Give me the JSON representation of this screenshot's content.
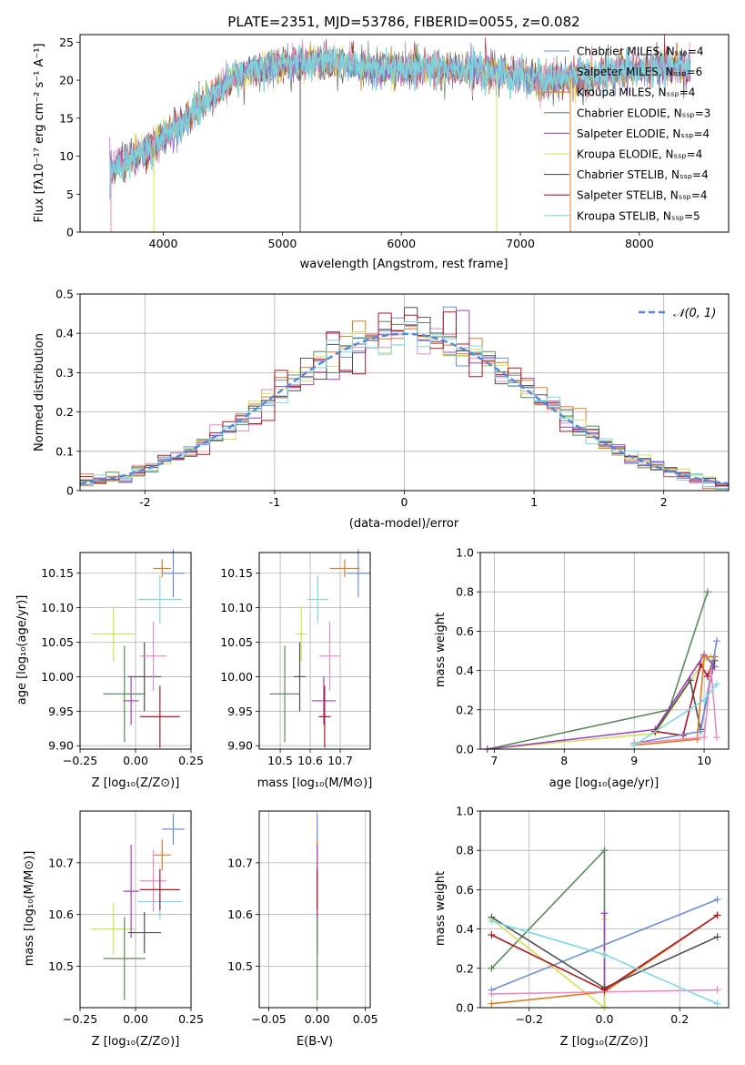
{
  "colors": {
    "chabrier_miles": "#6a8fd8",
    "salpeter_miles": "#e78ac3",
    "kroupa_miles": "#e07b24",
    "chabrier_elodie": "#5a8a5a",
    "salpeter_elodie": "#a040c0",
    "kroupa_elodie": "#d4e05a",
    "chabrier_stelib": "#505050",
    "salpeter_stelib": "#b01820",
    "kroupa_stelib": "#7ad8e0",
    "normal": "#5588dd",
    "grid": "#b0b0b0"
  },
  "chart_data": [
    {
      "id": "spectrum",
      "type": "line",
      "title": "PLATE=2351, MJD=53786, FIBERID=0055, z=0.082",
      "xlabel": "wavelength [Angstrom, rest frame]",
      "ylabel": "Flux [fλ10⁻¹⁷ erg cm⁻² s⁻¹ A⁻¹]",
      "xlim": [
        3300,
        8750
      ],
      "ylim": [
        0,
        26
      ],
      "xticks": [
        4000,
        5000,
        6000,
        7000,
        8000
      ],
      "yticks": [
        0,
        5,
        10,
        15,
        20,
        25
      ],
      "grid": false,
      "legend_position": "right",
      "legend": [
        "Chabrier MILES, Nₛₛₚ=4",
        "Salpeter MILES, Nₛₛₚ=6",
        "Kroupa MILES, Nₛₛₚ=4",
        "Chabrier ELODIE, Nₛₛₚ=3",
        "Salpeter ELODIE, Nₛₛₚ=4",
        "Kroupa ELODIE, Nₛₛₚ=4",
        "Chabrier STELIB, Nₛₛₚ=4",
        "Salpeter STELIB, Nₛₛₚ=4",
        "Kroupa STELIB, Nₛₛₚ=5"
      ],
      "continuum": {
        "x": [
          3550,
          3700,
          3900,
          4000,
          4200,
          4400,
          4600,
          4800,
          5000,
          5200,
          5400,
          5600,
          5800,
          6000,
          6200,
          6400,
          6600,
          6800,
          7000,
          7200,
          7400,
          7600,
          7800,
          8000,
          8200,
          8400
        ],
        "y": [
          8,
          9.5,
          11,
          12.5,
          15,
          18,
          20.5,
          21.5,
          22,
          22.5,
          22.5,
          22,
          21.5,
          21.5,
          21.5,
          21.5,
          21.5,
          21,
          20.5,
          20,
          20.2,
          20.5,
          21,
          21.5,
          21.8,
          21.5
        ]
      },
      "dropouts": [
        3560,
        3920,
        5150,
        6800,
        7420
      ]
    },
    {
      "id": "histogram",
      "type": "step",
      "xlabel": "(data-model)/error",
      "ylabel": "Normed distribution",
      "xlim": [
        -2.5,
        2.5
      ],
      "ylim": [
        0,
        0.5
      ],
      "xticks": [
        -2,
        -1,
        0,
        1,
        2
      ],
      "yticks": [
        0.0,
        0.1,
        0.2,
        0.3,
        0.4,
        0.5
      ],
      "grid": true,
      "legend": [
        "𝒩(0, 1)"
      ],
      "legend_position": "top-right",
      "bin_width": 0.1
    },
    {
      "id": "age_vs_Z",
      "type": "errorbar",
      "xlabel": "Z [log₁₀(Z/Z⊙)]",
      "ylabel": "age  [log₁₀(age/yr)]",
      "xlim": [
        -0.25,
        0.25
      ],
      "ylim": [
        9.895,
        10.18
      ],
      "xticks": [
        -0.25,
        0.0,
        0.25
      ],
      "xticklabels": [
        "−0.25",
        "0.00",
        "0.25"
      ],
      "yticks": [
        9.9,
        9.95,
        10.0,
        10.05,
        10.1,
        10.15
      ],
      "points": [
        {
          "model": "chabrier_miles",
          "x": 0.17,
          "xerr": 0.05,
          "y": 10.15,
          "yerr": 0.035
        },
        {
          "model": "kroupa_miles",
          "x": 0.12,
          "xerr": 0.04,
          "y": 10.157,
          "yerr": 0.013
        },
        {
          "model": "kroupa_stelib",
          "x": 0.11,
          "xerr": 0.1,
          "y": 10.112,
          "yerr": 0.035
        },
        {
          "model": "kroupa_elodie",
          "x": -0.1,
          "xerr": 0.1,
          "y": 10.062,
          "yerr": 0.04
        },
        {
          "model": "chabrier_stelib",
          "x": 0.04,
          "xerr": 0.075,
          "y": 10.0,
          "yerr": 0.05
        },
        {
          "model": "salpeter_miles",
          "x": 0.08,
          "xerr": 0.06,
          "y": 10.03,
          "yerr": 0.05
        },
        {
          "model": "salpeter_elodie",
          "x": -0.02,
          "xerr": 0.035,
          "y": 9.965,
          "yerr": 0.035
        },
        {
          "model": "chabrier_elodie",
          "x": -0.05,
          "xerr": 0.095,
          "y": 9.975,
          "yerr": 0.07
        },
        {
          "model": "salpeter_stelib",
          "x": 0.11,
          "xerr": 0.09,
          "y": 9.942,
          "yerr": 0.045
        }
      ]
    },
    {
      "id": "age_vs_mass",
      "type": "errorbar",
      "xlabel": "mass [log₁₀(M/M⊙)]",
      "xlim": [
        10.43,
        10.8
      ],
      "ylim": [
        9.895,
        10.18
      ],
      "xticks": [
        10.5,
        10.6,
        10.7
      ],
      "xticklabels": [
        "10.5",
        "10.6",
        "10.7"
      ],
      "yticks": [
        9.9,
        9.95,
        10.0,
        10.05,
        10.1,
        10.15
      ],
      "points": [
        {
          "model": "chabrier_miles",
          "x": 10.76,
          "xerr": 0.04,
          "y": 10.15,
          "yerr": 0.035
        },
        {
          "model": "kroupa_miles",
          "x": 10.715,
          "xerr": 0.05,
          "y": 10.157,
          "yerr": 0.013
        },
        {
          "model": "kroupa_stelib",
          "x": 10.625,
          "xerr": 0.035,
          "y": 10.112,
          "yerr": 0.035
        },
        {
          "model": "kroupa_elodie",
          "x": 10.57,
          "xerr": 0.02,
          "y": 10.062,
          "yerr": 0.04
        },
        {
          "model": "chabrier_stelib",
          "x": 10.565,
          "xerr": 0.02,
          "y": 10.0,
          "yerr": 0.05
        },
        {
          "model": "salpeter_miles",
          "x": 10.665,
          "xerr": 0.035,
          "y": 10.03,
          "yerr": 0.05
        },
        {
          "model": "salpeter_elodie",
          "x": 10.645,
          "xerr": 0.04,
          "y": 9.965,
          "yerr": 0.035
        },
        {
          "model": "chabrier_elodie",
          "x": 10.515,
          "xerr": 0.05,
          "y": 9.975,
          "yerr": 0.07
        },
        {
          "model": "salpeter_stelib",
          "x": 10.648,
          "xerr": 0.02,
          "y": 9.942,
          "yerr": 0.045
        }
      ]
    },
    {
      "id": "weight_vs_age",
      "type": "line",
      "xlabel": "age  [log₁₀(age/yr)]",
      "ylabel": "mass weight",
      "xlim": [
        6.8,
        10.35
      ],
      "ylim": [
        0,
        1.0
      ],
      "xticks": [
        7,
        8,
        9,
        10
      ],
      "yticks": [
        0.0,
        0.2,
        0.4,
        0.6,
        0.8,
        1.0
      ],
      "series": [
        {
          "model": "chabrier_elodie",
          "x": [
            6.9,
            9.5,
            10.05
          ],
          "y": [
            0.0,
            0.2,
            0.8
          ]
        },
        {
          "model": "kroupa_elodie",
          "x": [
            6.9,
            9.3,
            10.0,
            10.1
          ],
          "y": [
            0.0,
            0.08,
            0.45,
            0.47
          ]
        },
        {
          "model": "salpeter_elodie",
          "x": [
            6.9,
            9.3,
            10.0,
            10.15
          ],
          "y": [
            0.0,
            0.1,
            0.48,
            0.42
          ]
        },
        {
          "model": "chabrier_stelib",
          "x": [
            9.3,
            9.8,
            9.95,
            10.15
          ],
          "y": [
            0.09,
            0.35,
            0.1,
            0.45
          ]
        },
        {
          "model": "salpeter_stelib",
          "x": [
            9.3,
            9.7,
            9.95,
            10.05,
            10.15
          ],
          "y": [
            0.09,
            0.07,
            0.43,
            0.37,
            0.47
          ]
        },
        {
          "model": "kroupa_miles",
          "x": [
            9.0,
            9.9,
            10.0,
            10.15
          ],
          "y": [
            0.02,
            0.05,
            0.47,
            0.47
          ]
        },
        {
          "model": "chabrier_miles",
          "x": [
            9.0,
            9.95,
            10.18
          ],
          "y": [
            0.03,
            0.09,
            0.55
          ]
        },
        {
          "model": "salpeter_miles",
          "x": [
            9.0,
            10.0,
            10.1,
            10.18
          ],
          "y": [
            0.03,
            0.06,
            0.4,
            0.06
          ]
        },
        {
          "model": "kroupa_stelib",
          "x": [
            9.0,
            10.0,
            10.18
          ],
          "y": [
            0.02,
            0.25,
            0.33
          ]
        }
      ]
    },
    {
      "id": "mass_vs_Z",
      "type": "errorbar",
      "xlabel": "Z [log₁₀(Z/Z⊙)]",
      "ylabel": "mass [log₁₀(M/M⊙)]",
      "xlim": [
        -0.25,
        0.25
      ],
      "ylim": [
        10.42,
        10.8
      ],
      "xticks": [
        -0.25,
        0.0,
        0.25
      ],
      "xticklabels": [
        "−0.25",
        "0.00",
        "0.25"
      ],
      "yticks": [
        10.5,
        10.6,
        10.7
      ],
      "points": [
        {
          "model": "chabrier_miles",
          "x": 0.17,
          "xerr": 0.05,
          "y": 10.765,
          "yerr": 0.03
        },
        {
          "model": "kroupa_miles",
          "x": 0.12,
          "xerr": 0.04,
          "y": 10.715,
          "yerr": 0.03
        },
        {
          "model": "kroupa_stelib",
          "x": 0.11,
          "xerr": 0.1,
          "y": 10.625,
          "yerr": 0.035
        },
        {
          "model": "kroupa_elodie",
          "x": -0.1,
          "xerr": 0.1,
          "y": 10.572,
          "yerr": 0.05
        },
        {
          "model": "chabrier_stelib",
          "x": 0.04,
          "xerr": 0.075,
          "y": 10.565,
          "yerr": 0.04
        },
        {
          "model": "salpeter_miles",
          "x": 0.08,
          "xerr": 0.06,
          "y": 10.665,
          "yerr": 0.06
        },
        {
          "model": "salpeter_elodie",
          "x": -0.02,
          "xerr": 0.035,
          "y": 10.645,
          "yerr": 0.09
        },
        {
          "model": "chabrier_elodie",
          "x": -0.05,
          "xerr": 0.095,
          "y": 10.515,
          "yerr": 0.08
        },
        {
          "model": "salpeter_stelib",
          "x": 0.11,
          "xerr": 0.09,
          "y": 10.648,
          "yerr": 0.04
        }
      ]
    },
    {
      "id": "mass_vs_ebv",
      "type": "errorbar",
      "xlabel": "E(B-V)",
      "xlim": [
        -0.06,
        0.055
      ],
      "ylim": [
        10.42,
        10.8
      ],
      "xticks": [
        -0.05,
        0.0,
        0.05
      ],
      "xticklabels": [
        "−0.05",
        "0.00",
        "0.05"
      ],
      "yticks": [
        10.5,
        10.6,
        10.7
      ],
      "points": [
        {
          "model": "chabrier_miles",
          "x": 0.0,
          "xerr": 0.0,
          "y": 10.765,
          "yerr": 0.03
        },
        {
          "model": "kroupa_miles",
          "x": 0.0,
          "xerr": 0.0,
          "y": 10.715,
          "yerr": 0.03
        },
        {
          "model": "kroupa_stelib",
          "x": 0.0,
          "xerr": 0.0,
          "y": 10.625,
          "yerr": 0.035
        },
        {
          "model": "kroupa_elodie",
          "x": 0.0,
          "xerr": 0.0,
          "y": 10.572,
          "yerr": 0.05
        },
        {
          "model": "chabrier_stelib",
          "x": 0.0,
          "xerr": 0.0,
          "y": 10.565,
          "yerr": 0.04
        },
        {
          "model": "salpeter_miles",
          "x": 0.0,
          "xerr": 0.0,
          "y": 10.665,
          "yerr": 0.06
        },
        {
          "model": "salpeter_elodie",
          "x": 0.0,
          "xerr": 0.0,
          "y": 10.645,
          "yerr": 0.09
        },
        {
          "model": "chabrier_elodie",
          "x": 0.0,
          "xerr": 0.0,
          "y": 10.515,
          "yerr": 0.08
        },
        {
          "model": "salpeter_stelib",
          "x": 0.0,
          "xerr": 0.0,
          "y": 10.648,
          "yerr": 0.04
        }
      ]
    },
    {
      "id": "weight_vs_Z",
      "type": "line",
      "xlabel": "Z [log₁₀(Z/Z⊙)]",
      "ylabel": "mass weight",
      "xlim": [
        -0.33,
        0.33
      ],
      "ylim": [
        0,
        1.0
      ],
      "xticks": [
        -0.2,
        0.0,
        0.2
      ],
      "xticklabels": [
        "−0.2",
        "0.0",
        "0.2"
      ],
      "yticks": [
        0.0,
        0.2,
        0.4,
        0.6,
        0.8,
        1.0
      ],
      "series": [
        {
          "model": "chabrier_elodie",
          "x": [
            -0.3,
            0.0,
            0.0
          ],
          "y": [
            0.2,
            0.8,
            0.0
          ]
        },
        {
          "model": "kroupa_elodie",
          "x": [
            -0.3,
            0.0,
            0.0
          ],
          "y": [
            0.45,
            0.0,
            0.45
          ]
        },
        {
          "model": "salpeter_elodie",
          "x": [
            0.0,
            0.0
          ],
          "y": [
            0.1,
            0.48
          ]
        },
        {
          "model": "chabrier_miles",
          "x": [
            -0.3,
            0.3
          ],
          "y": [
            0.09,
            0.55
          ]
        },
        {
          "model": "kroupa_miles",
          "x": [
            -0.3,
            0.0,
            0.3
          ],
          "y": [
            0.02,
            0.08,
            0.47
          ]
        },
        {
          "model": "salpeter_miles",
          "x": [
            -0.3,
            0.3
          ],
          "y": [
            0.07,
            0.09
          ]
        },
        {
          "model": "chabrier_stelib",
          "x": [
            -0.3,
            0.0,
            0.3
          ],
          "y": [
            0.46,
            0.1,
            0.36
          ]
        },
        {
          "model": "salpeter_stelib",
          "x": [
            -0.3,
            0.0,
            0.3
          ],
          "y": [
            0.37,
            0.09,
            0.47
          ]
        },
        {
          "model": "kroupa_stelib",
          "x": [
            -0.3,
            0.0,
            0.3
          ],
          "y": [
            0.44,
            0.27,
            0.02
          ]
        }
      ]
    }
  ]
}
